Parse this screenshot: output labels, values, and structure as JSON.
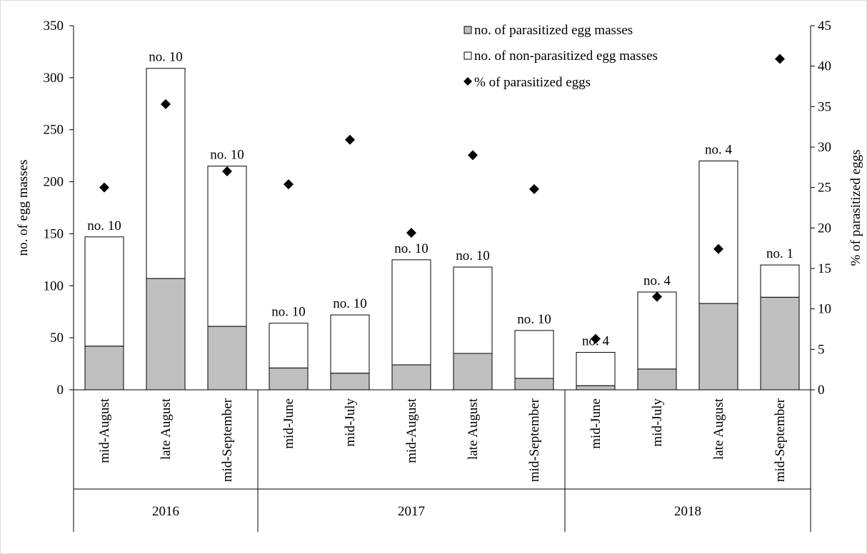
{
  "chart_data": {
    "type": "bar",
    "stacked": true,
    "grid": false,
    "legend_position": "top-right",
    "groups": [
      {
        "label": "2016",
        "categories": [
          "mid-August",
          "late August",
          "mid-September"
        ]
      },
      {
        "label": "2017",
        "categories": [
          "mid-June",
          "mid-July",
          "mid-August",
          "late August",
          "mid-September"
        ]
      },
      {
        "label": "2018",
        "categories": [
          "mid-June",
          "mid-July",
          "late August",
          "mid-September"
        ]
      }
    ],
    "categories": [
      "mid-August",
      "late August",
      "mid-September",
      "mid-June",
      "mid-July",
      "mid-August",
      "late August",
      "mid-September",
      "mid-June",
      "mid-July",
      "late August",
      "mid-September"
    ],
    "series": [
      {
        "name": "no. of parasitized egg masses",
        "type": "bar",
        "axis": "left",
        "color": "#bfbfbf",
        "values": [
          42,
          107,
          61,
          21,
          16,
          24,
          35,
          11,
          4,
          20,
          83,
          89
        ]
      },
      {
        "name": "no. of non-parasitized egg masses",
        "type": "bar",
        "axis": "left",
        "color": "#ffffff",
        "values": [
          105,
          202,
          154,
          43,
          56,
          101,
          83,
          46,
          32,
          74,
          137,
          31
        ]
      },
      {
        "name": "% of parasitized eggs",
        "type": "scatter",
        "axis": "right",
        "marker": "diamond",
        "color": "#000000",
        "values": [
          25.0,
          35.3,
          27.0,
          25.4,
          30.9,
          19.4,
          29.0,
          24.8,
          6.3,
          11.5,
          17.4,
          40.9
        ]
      }
    ],
    "bar_labels": [
      "no. 10",
      "no. 10",
      "no. 10",
      "no. 10",
      "no. 10",
      "no. 10",
      "no. 10",
      "no. 10",
      "no. 4",
      "no. 4",
      "no. 4",
      "no. 1"
    ],
    "ylabel": "no. of egg masses",
    "ylim": [
      0,
      350
    ],
    "yticks": [
      "0",
      "50",
      "100",
      "150",
      "200",
      "250",
      "300",
      "350"
    ],
    "y2label": "% of parasitized eggs",
    "y2lim": [
      0,
      45
    ],
    "y2ticks": [
      "0",
      "5",
      "10",
      "15",
      "20",
      "25",
      "30",
      "35",
      "40",
      "45"
    ]
  }
}
